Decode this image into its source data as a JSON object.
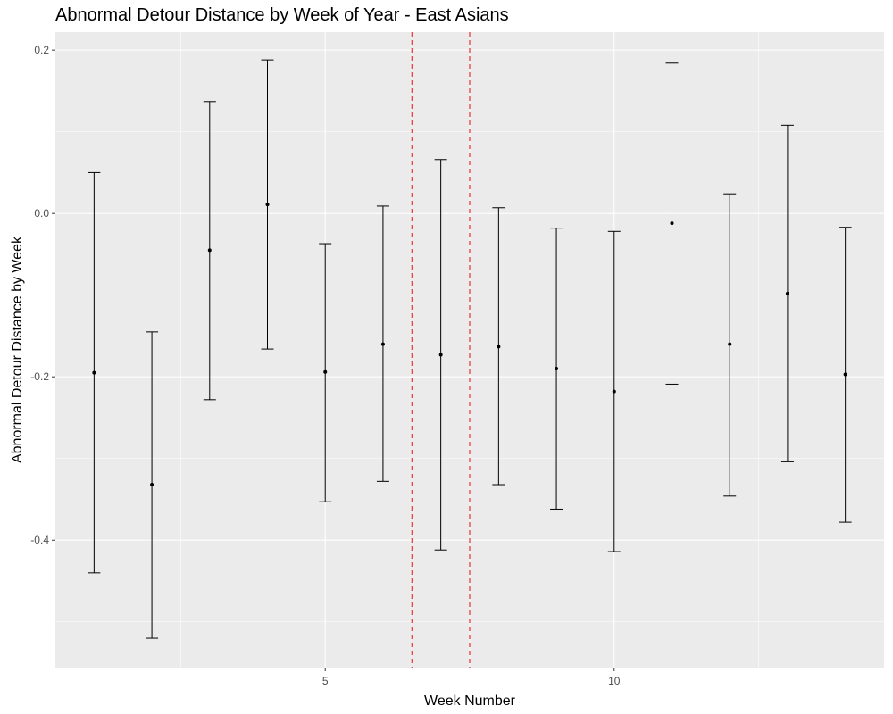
{
  "chart_data": {
    "type": "scatter",
    "title": "Abnormal Detour Distance by Week of Year - East Asians",
    "xlabel": "Week Number",
    "ylabel": "Abnormal Detour Distance by Week",
    "xlim": [
      0.33,
      14.67
    ],
    "ylim": [
      -0.556,
      0.222
    ],
    "x_ticks": [
      5,
      10
    ],
    "x_tick_labels": [
      "5",
      "10"
    ],
    "y_ticks": [
      0.2,
      0.0,
      -0.2,
      -0.4
    ],
    "y_tick_labels": [
      "0.2",
      "0.0",
      "-0.2",
      "-0.4"
    ],
    "grid": true,
    "background": "#ebebeb",
    "point_color": "#000000",
    "reference_lines": [
      {
        "x": 6.5,
        "color": "#e8232a",
        "style": "dashed"
      },
      {
        "x": 7.5,
        "color": "#e8232a",
        "style": "dashed"
      }
    ],
    "points": [
      {
        "x": 1,
        "y": -0.195,
        "ymin": -0.44,
        "ymax": 0.05
      },
      {
        "x": 2,
        "y": -0.332,
        "ymin": -0.52,
        "ymax": -0.145
      },
      {
        "x": 3,
        "y": -0.045,
        "ymin": -0.228,
        "ymax": 0.137
      },
      {
        "x": 4,
        "y": 0.011,
        "ymin": -0.166,
        "ymax": 0.188
      },
      {
        "x": 5,
        "y": -0.194,
        "ymin": -0.353,
        "ymax": -0.037
      },
      {
        "x": 6,
        "y": -0.16,
        "ymin": -0.328,
        "ymax": 0.009
      },
      {
        "x": 7,
        "y": -0.173,
        "ymin": -0.412,
        "ymax": 0.066
      },
      {
        "x": 8,
        "y": -0.163,
        "ymin": -0.332,
        "ymax": 0.007
      },
      {
        "x": 9,
        "y": -0.19,
        "ymin": -0.362,
        "ymax": -0.018
      },
      {
        "x": 10,
        "y": -0.218,
        "ymin": -0.414,
        "ymax": -0.022
      },
      {
        "x": 11,
        "y": -0.012,
        "ymin": -0.209,
        "ymax": 0.184
      },
      {
        "x": 12,
        "y": -0.16,
        "ymin": -0.346,
        "ymax": 0.024
      },
      {
        "x": 13,
        "y": -0.098,
        "ymin": -0.304,
        "ymax": 0.108
      },
      {
        "x": 14,
        "y": -0.197,
        "ymin": -0.378,
        "ymax": -0.017
      }
    ]
  }
}
